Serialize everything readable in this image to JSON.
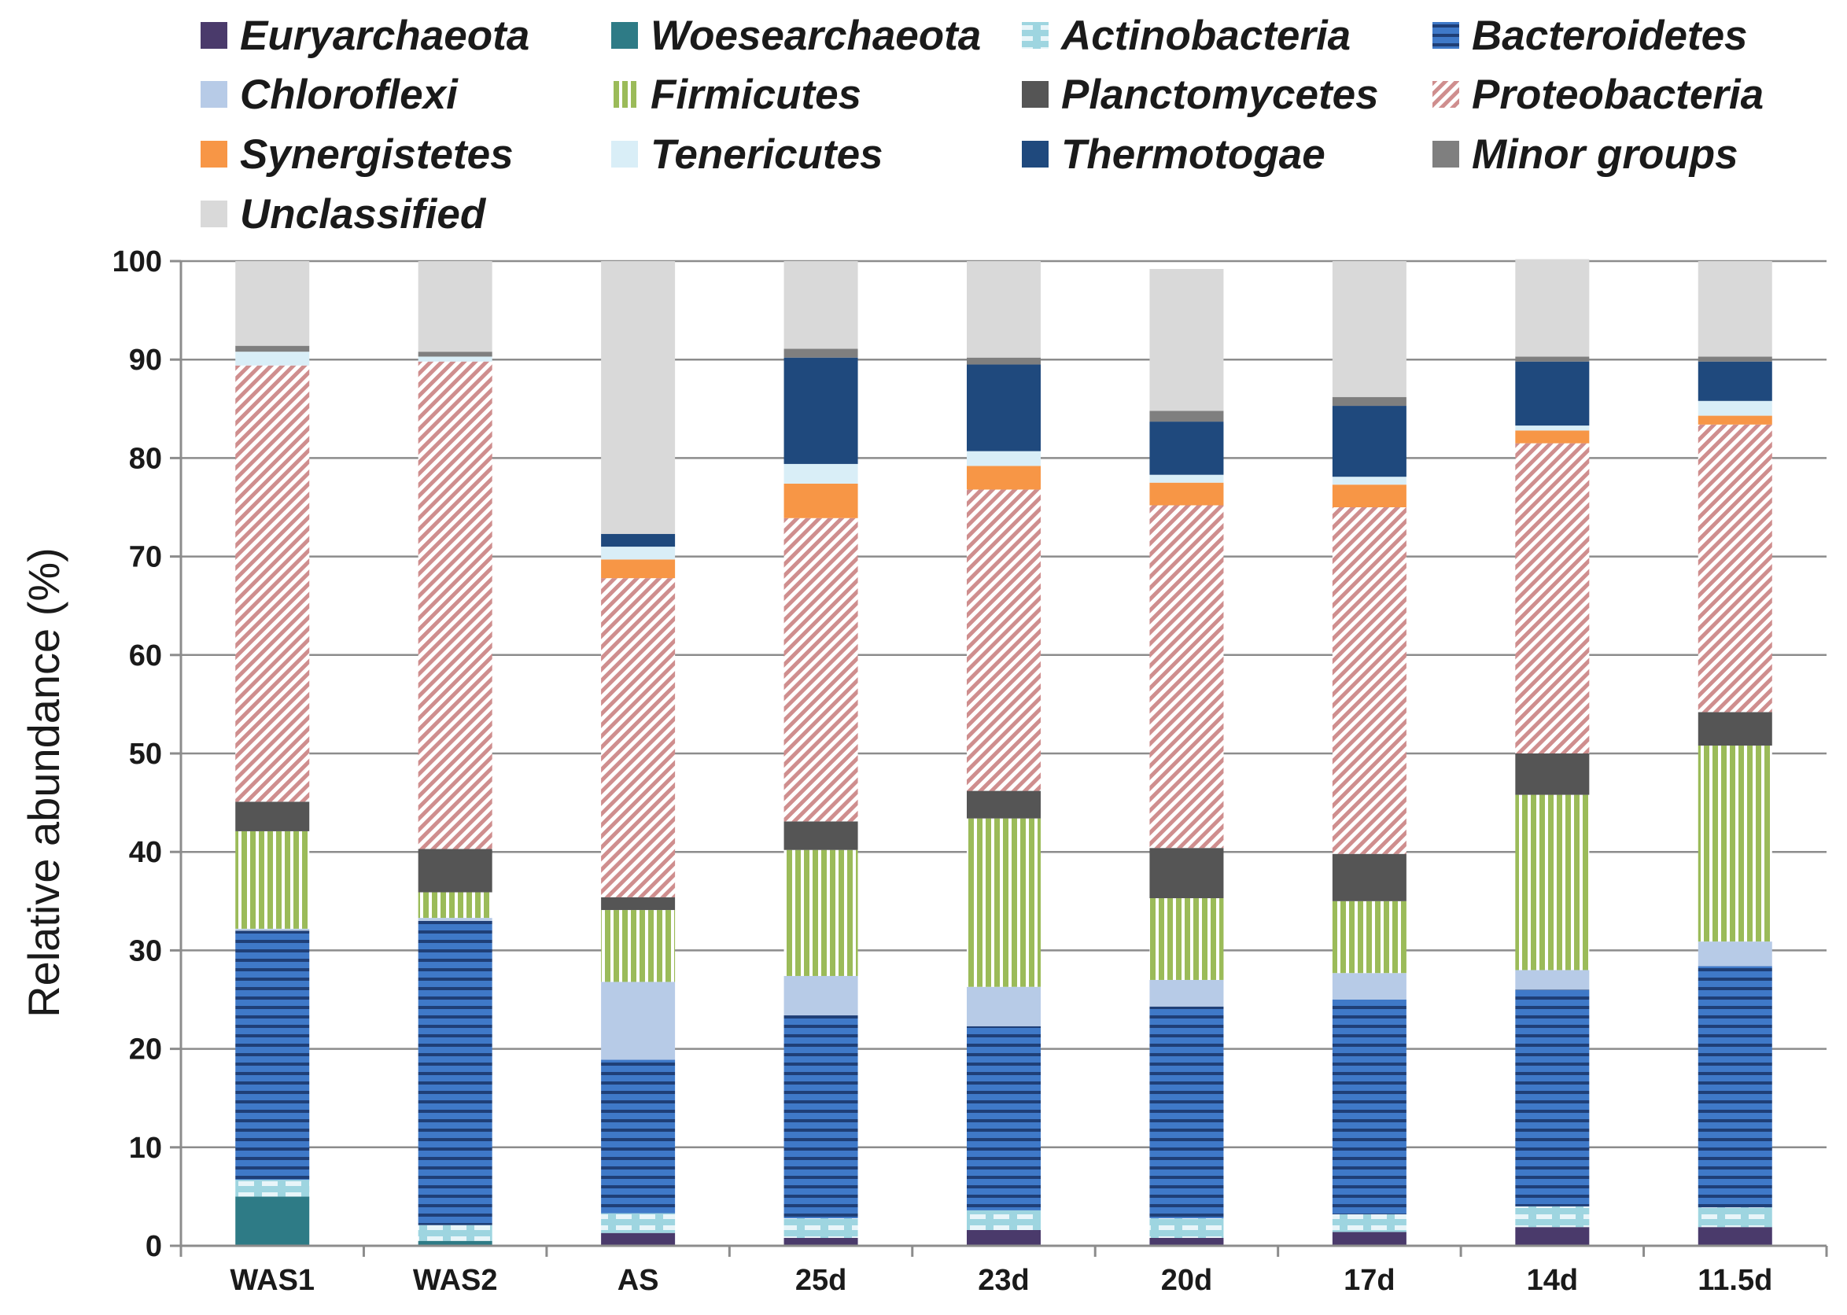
{
  "chart_data": {
    "type": "bar",
    "stacked": true,
    "title": "",
    "xlabel": "",
    "ylabel": "Relative abundance (%)",
    "ylim": [
      0,
      100
    ],
    "yticks": [
      0,
      10,
      20,
      30,
      40,
      50,
      60,
      70,
      80,
      90,
      100
    ],
    "grid": true,
    "legend_position": "top",
    "categories": [
      "WAS1",
      "WAS2",
      "AS",
      "25d",
      "23d",
      "20d",
      "17d",
      "14d",
      "11.5d"
    ],
    "series": [
      {
        "name": "Euryarchaeota",
        "color": "#4a3a6b",
        "pattern": "solid",
        "values": [
          0,
          0,
          1.3,
          0.8,
          1.6,
          0.8,
          1.4,
          1.9,
          1.9
        ]
      },
      {
        "name": "Woesearchaeota",
        "color": "#2e7b86",
        "pattern": "solid",
        "values": [
          5.0,
          0.5,
          0,
          0,
          0,
          0,
          0,
          0,
          0
        ]
      },
      {
        "name": "Actinobacteria",
        "color": "#9ed5e0",
        "pattern": "dashed",
        "values": [
          1.7,
          1.6,
          2.0,
          2.0,
          2.0,
          2.0,
          1.8,
          2.1,
          2.0
        ]
      },
      {
        "name": "Bacteroidetes",
        "color": "#3f79c8",
        "pattern": "hlines",
        "values": [
          25.3,
          30.9,
          15.6,
          20.6,
          18.7,
          21.5,
          21.8,
          22.0,
          24.5
        ]
      },
      {
        "name": "Chloroflexi",
        "color": "#b7cbe7",
        "pattern": "solid",
        "values": [
          0.2,
          0.3,
          7.9,
          4.0,
          4.0,
          2.7,
          2.7,
          2.0,
          2.5
        ]
      },
      {
        "name": "Firmicutes",
        "color": "#9bbb59",
        "pattern": "vlines",
        "values": [
          9.9,
          2.6,
          7.3,
          12.8,
          17.1,
          8.3,
          7.3,
          17.8,
          19.9
        ]
      },
      {
        "name": "Planctomycetes",
        "color": "#555555",
        "pattern": "solid",
        "values": [
          3.0,
          4.4,
          1.3,
          2.9,
          2.8,
          5.1,
          4.8,
          4.2,
          3.4
        ]
      },
      {
        "name": "Proteobacteria",
        "color": "#d9a5a5",
        "pattern": "diag",
        "values": [
          44.3,
          49.5,
          32.4,
          30.8,
          30.6,
          34.8,
          35.2,
          31.5,
          29.2
        ]
      },
      {
        "name": "Synergistetes",
        "color": "#f79646",
        "pattern": "solid",
        "values": [
          0,
          0,
          1.9,
          3.5,
          2.4,
          2.3,
          2.3,
          1.3,
          0.9
        ]
      },
      {
        "name": "Tenericutes",
        "color": "#d9eef7",
        "pattern": "solid",
        "values": [
          1.4,
          0.5,
          1.3,
          2.0,
          1.5,
          0.8,
          0.8,
          0.5,
          1.5
        ]
      },
      {
        "name": "Thermotogae",
        "color": "#1f497d",
        "pattern": "solid",
        "values": [
          0,
          0,
          1.3,
          10.8,
          8.8,
          5.4,
          7.2,
          6.5,
          4.0
        ]
      },
      {
        "name": "Minor groups",
        "color": "#7f7f7f",
        "pattern": "solid",
        "values": [
          0.6,
          0.5,
          0,
          0.9,
          0.7,
          1.1,
          0.9,
          0.5,
          0.5
        ]
      },
      {
        "name": "Unclassified",
        "color": "#d9d9d9",
        "pattern": "solid",
        "values": [
          8.6,
          9.2,
          27.7,
          8.9,
          9.8,
          14.4,
          13.8,
          9.9,
          9.7
        ]
      }
    ]
  }
}
